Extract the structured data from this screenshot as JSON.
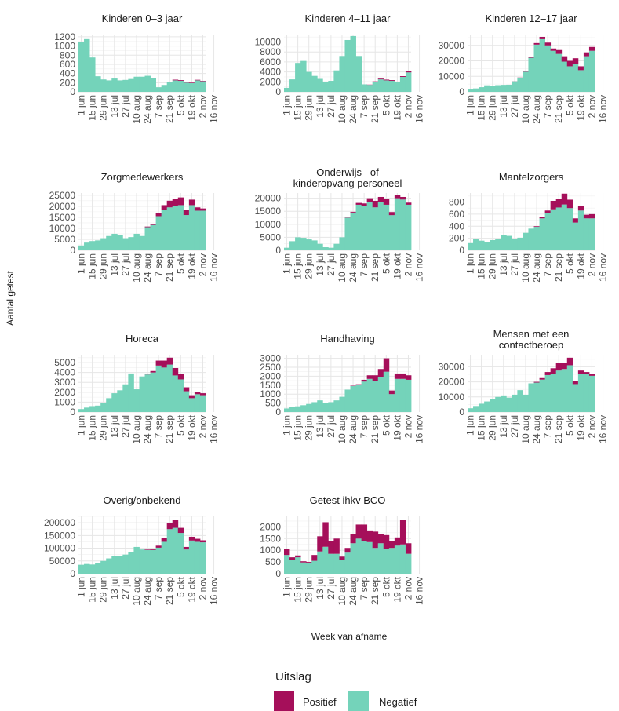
{
  "colors": {
    "positive": "#A50F5A",
    "negative": "#74D3BA",
    "grid": "#e6e6e6"
  },
  "axis": {
    "ylabel": "Aantal getest",
    "xlabel": "Week van afname"
  },
  "legend": {
    "title": "Uitslag",
    "items": [
      {
        "key": "positive",
        "label": "Positief"
      },
      {
        "key": "negative",
        "label": "Negatief"
      }
    ]
  },
  "chart_data": [
    {
      "type": "bar",
      "stacked": true,
      "title": "Kinderen 0–3 jaar",
      "ylim": [
        0,
        1250
      ],
      "yticks": [
        0,
        200,
        400,
        600,
        800,
        1000,
        1200
      ],
      "xticks": [
        "1 jun",
        "15 jun",
        "29 jun",
        "13 jul",
        "27 jul",
        "10 aug",
        "24 aug",
        "7 sep",
        "21 sep",
        "5 okt",
        "19 okt",
        "2 nov",
        "16 nov"
      ],
      "series": [
        {
          "name": "Negatief",
          "values": [
            1080,
            1150,
            750,
            340,
            270,
            250,
            290,
            250,
            260,
            280,
            330,
            330,
            350,
            300,
            100,
            150,
            210,
            250,
            240,
            200,
            190,
            250,
            230
          ]
        },
        {
          "name": "Positief",
          "values": [
            0,
            0,
            0,
            0,
            0,
            0,
            0,
            0,
            0,
            0,
            0,
            0,
            0,
            0,
            0,
            0,
            10,
            15,
            15,
            15,
            12,
            12,
            10
          ]
        }
      ]
    },
    {
      "type": "bar",
      "stacked": true,
      "title": "Kinderen 4–11 jaar",
      "ylim": [
        0,
        11500
      ],
      "yticks": [
        0,
        2000,
        4000,
        6000,
        8000,
        10000
      ],
      "xticks": [
        "1 jun",
        "15 jun",
        "29 jun",
        "13 jul",
        "27 jul",
        "10 aug",
        "24 aug",
        "7 sep",
        "21 sep",
        "5 okt",
        "19 okt",
        "2 nov",
        "16 nov"
      ],
      "series": [
        {
          "name": "Negatief",
          "values": [
            800,
            2500,
            5800,
            6200,
            4000,
            3200,
            2600,
            1900,
            2200,
            4300,
            7200,
            10400,
            11200,
            7200,
            1500,
            1400,
            2000,
            2500,
            2300,
            2200,
            1900,
            3000,
            3900
          ]
        },
        {
          "name": "Positief",
          "values": [
            0,
            0,
            0,
            0,
            0,
            0,
            0,
            0,
            0,
            0,
            0,
            0,
            0,
            0,
            0,
            50,
            100,
            150,
            150,
            150,
            120,
            150,
            200
          ]
        }
      ]
    },
    {
      "type": "bar",
      "stacked": true,
      "title": "Kinderen 12–17 jaar",
      "ylim": [
        0,
        37000
      ],
      "yticks": [
        0,
        10000,
        20000,
        30000
      ],
      "xticks": [
        "1 jun",
        "15 jun",
        "29 jun",
        "13 jul",
        "27 jul",
        "10 aug",
        "24 aug",
        "7 sep",
        "21 sep",
        "5 okt",
        "19 okt",
        "2 nov",
        "16 nov"
      ],
      "series": [
        {
          "name": "Negatief",
          "values": [
            1500,
            2200,
            3000,
            4200,
            3900,
            4300,
            4500,
            4600,
            6800,
            9200,
            13000,
            22000,
            30500,
            34000,
            30000,
            26500,
            24500,
            19500,
            16500,
            18000,
            14000,
            23000,
            26500
          ]
        },
        {
          "name": "Positief",
          "values": [
            0,
            0,
            0,
            0,
            0,
            0,
            0,
            0,
            50,
            100,
            200,
            400,
            1000,
            1500,
            1800,
            1500,
            2500,
            3500,
            3500,
            3700,
            2500,
            2500,
            2500
          ]
        }
      ]
    },
    {
      "type": "bar",
      "stacked": true,
      "title": "Zorgmedewerkers",
      "ylim": [
        0,
        26000
      ],
      "yticks": [
        0,
        5000,
        10000,
        15000,
        20000,
        25000
      ],
      "xticks": [
        "1 jun",
        "15 jun",
        "29 jun",
        "13 jul",
        "27 jul",
        "10 aug",
        "24 aug",
        "7 sep",
        "21 sep",
        "5 okt",
        "19 okt",
        "2 nov",
        "16 nov"
      ],
      "series": [
        {
          "name": "Negatief",
          "values": [
            2200,
            3500,
            4200,
            4500,
            5500,
            6500,
            7500,
            6800,
            5500,
            6000,
            7500,
            6500,
            10500,
            11500,
            15500,
            18500,
            19500,
            20000,
            20500,
            16000,
            20500,
            18000,
            18000
          ]
        },
        {
          "name": "Positief",
          "values": [
            0,
            0,
            0,
            0,
            0,
            0,
            0,
            0,
            0,
            0,
            0,
            0,
            300,
            500,
            1300,
            2000,
            3000,
            3500,
            3500,
            2500,
            2500,
            1500,
            1000
          ]
        }
      ]
    },
    {
      "type": "bar",
      "stacked": true,
      "title": "Onderwijs- of kinderopvang personeel",
      "title_lines": [
        "Onderwijs– of",
        "kinderopvang personeel"
      ],
      "ylim": [
        0,
        22000
      ],
      "yticks": [
        0,
        5000,
        10000,
        15000,
        20000
      ],
      "xticks": [
        "1 jun",
        "15 jun",
        "29 jun",
        "13 jul",
        "27 jul",
        "10 aug",
        "24 aug",
        "7 sep",
        "21 sep",
        "5 okt",
        "19 okt",
        "2 nov",
        "16 nov"
      ],
      "series": [
        {
          "name": "Negatief",
          "values": [
            1000,
            3500,
            5000,
            4800,
            4200,
            3800,
            2500,
            1200,
            1000,
            2500,
            5000,
            12500,
            14500,
            17500,
            17000,
            18500,
            16500,
            18500,
            17500,
            13500,
            20000,
            19500,
            17500
          ]
        },
        {
          "name": "Positief",
          "values": [
            0,
            0,
            0,
            0,
            0,
            0,
            0,
            0,
            0,
            0,
            0,
            100,
            300,
            700,
            1000,
            1500,
            2500,
            2000,
            2200,
            1200,
            1300,
            1000,
            800
          ]
        }
      ]
    },
    {
      "type": "bar",
      "stacked": true,
      "title": "Mantelzorgers",
      "ylim": [
        0,
        950
      ],
      "yticks": [
        0,
        200,
        400,
        600,
        800
      ],
      "xticks": [
        "1 jun",
        "15 jun",
        "29 jun",
        "13 jul",
        "27 jul",
        "10 aug",
        "24 aug",
        "7 sep",
        "21 sep",
        "5 okt",
        "19 okt",
        "2 nov",
        "16 nov"
      ],
      "series": [
        {
          "name": "Negatief",
          "values": [
            120,
            190,
            160,
            130,
            170,
            190,
            260,
            240,
            190,
            210,
            290,
            360,
            390,
            530,
            620,
            680,
            710,
            760,
            700,
            460,
            660,
            530,
            530
          ]
        },
        {
          "name": "Positief",
          "values": [
            0,
            0,
            0,
            0,
            0,
            0,
            0,
            0,
            0,
            0,
            0,
            0,
            10,
            20,
            40,
            140,
            140,
            180,
            140,
            70,
            80,
            60,
            70
          ]
        }
      ]
    },
    {
      "type": "bar",
      "stacked": true,
      "title": "Horeca",
      "ylim": [
        0,
        5800
      ],
      "yticks": [
        0,
        1000,
        2000,
        3000,
        4000,
        5000
      ],
      "xticks": [
        "1 jun",
        "15 jun",
        "29 jun",
        "13 jul",
        "27 jul",
        "10 aug",
        "24 aug",
        "7 sep",
        "21 sep",
        "5 okt",
        "19 okt",
        "2 nov",
        "16 nov"
      ],
      "series": [
        {
          "name": "Negatief",
          "values": [
            300,
            450,
            600,
            650,
            900,
            1400,
            1900,
            2200,
            2800,
            3900,
            2300,
            3600,
            3800,
            4000,
            4700,
            4500,
            4800,
            3700,
            3300,
            2100,
            1400,
            1800,
            1700
          ]
        },
        {
          "name": "Positief",
          "values": [
            0,
            0,
            0,
            0,
            0,
            0,
            0,
            0,
            0,
            0,
            0,
            0,
            50,
            150,
            500,
            700,
            700,
            750,
            550,
            400,
            300,
            250,
            200
          ]
        }
      ]
    },
    {
      "type": "bar",
      "stacked": true,
      "title": "Handhaving",
      "ylim": [
        0,
        3200
      ],
      "yticks": [
        0,
        500,
        1000,
        1500,
        2000,
        2500,
        3000
      ],
      "xticks": [
        "1 jun",
        "15 jun",
        "29 jun",
        "13 jul",
        "27 jul",
        "10 aug",
        "24 aug",
        "7 sep",
        "21 sep",
        "5 okt",
        "19 okt",
        "2 nov",
        "16 nov"
      ],
      "series": [
        {
          "name": "Negatief",
          "values": [
            200,
            280,
            320,
            380,
            450,
            550,
            650,
            520,
            550,
            650,
            850,
            1250,
            1450,
            1500,
            1700,
            1850,
            1750,
            1950,
            2250,
            1000,
            1850,
            1850,
            1800
          ]
        },
        {
          "name": "Positief",
          "values": [
            0,
            0,
            0,
            0,
            0,
            0,
            0,
            0,
            0,
            0,
            0,
            0,
            20,
            50,
            100,
            200,
            300,
            450,
            750,
            200,
            300,
            300,
            250
          ]
        }
      ]
    },
    {
      "type": "bar",
      "stacked": true,
      "title": "Mensen met een contactberoep",
      "title_lines": [
        "Mensen met een",
        "contactberoep"
      ],
      "ylim": [
        0,
        38000
      ],
      "yticks": [
        0,
        10000,
        20000,
        30000
      ],
      "xticks": [
        "1 jun",
        "15 jun",
        "29 jun",
        "13 jul",
        "27 jul",
        "10 aug",
        "24 aug",
        "7 sep",
        "21 sep",
        "5 okt",
        "19 okt",
        "2 nov",
        "16 nov"
      ],
      "series": [
        {
          "name": "Negatief",
          "values": [
            2500,
            4000,
            5500,
            7000,
            8500,
            10000,
            11000,
            9500,
            11500,
            14500,
            11500,
            19000,
            19500,
            21500,
            24500,
            25500,
            27500,
            28500,
            31000,
            18500,
            25000,
            25000,
            24000
          ]
        },
        {
          "name": "Positief",
          "values": [
            0,
            0,
            0,
            0,
            0,
            0,
            0,
            0,
            0,
            0,
            0,
            0,
            500,
            1000,
            2000,
            3500,
            5000,
            4000,
            5000,
            2000,
            2500,
            1500,
            1500
          ]
        }
      ]
    },
    {
      "type": "bar",
      "stacked": true,
      "title": "Overig/onbekend",
      "ylim": [
        0,
        225000
      ],
      "yticks": [
        0,
        50000,
        100000,
        150000,
        200000
      ],
      "xticks": [
        "1 jun",
        "15 jun",
        "29 jun",
        "13 jul",
        "27 jul",
        "10 aug",
        "24 aug",
        "7 sep",
        "21 sep",
        "5 okt",
        "19 okt",
        "2 nov",
        "16 nov"
      ],
      "series": [
        {
          "name": "Negatief",
          "values": [
            35000,
            38000,
            36000,
            43000,
            50000,
            60000,
            70000,
            68000,
            75000,
            85000,
            105000,
            95000,
            93000,
            93000,
            102000,
            125000,
            175000,
            180000,
            160000,
            95000,
            130000,
            125000,
            123000
          ]
        },
        {
          "name": "Positief",
          "values": [
            0,
            0,
            0,
            0,
            0,
            0,
            0,
            0,
            0,
            0,
            0,
            0,
            2000,
            3000,
            8000,
            15000,
            25000,
            32000,
            20000,
            10000,
            15000,
            12000,
            8000
          ]
        }
      ]
    },
    {
      "type": "bar",
      "stacked": true,
      "title": "Getest ihkv BCO",
      "ylim": [
        0,
        2450
      ],
      "yticks": [
        0,
        500,
        1000,
        1500,
        2000
      ],
      "xticks": [
        "1 jun",
        "15 jun",
        "29 jun",
        "13 jul",
        "27 jul",
        "10 aug",
        "24 aug",
        "7 sep",
        "21 sep",
        "5 okt",
        "19 okt",
        "2 nov",
        "16 nov"
      ],
      "series": [
        {
          "name": "Negatief",
          "values": [
            800,
            600,
            700,
            480,
            450,
            550,
            950,
            1150,
            850,
            850,
            580,
            900,
            1300,
            1500,
            1400,
            1350,
            1100,
            1300,
            1050,
            1100,
            1200,
            1250,
            850
          ]
        },
        {
          "name": "Positief",
          "values": [
            250,
            100,
            80,
            50,
            50,
            250,
            650,
            1050,
            550,
            650,
            150,
            200,
            400,
            600,
            700,
            500,
            700,
            400,
            600,
            300,
            350,
            1050,
            450
          ]
        }
      ]
    }
  ]
}
